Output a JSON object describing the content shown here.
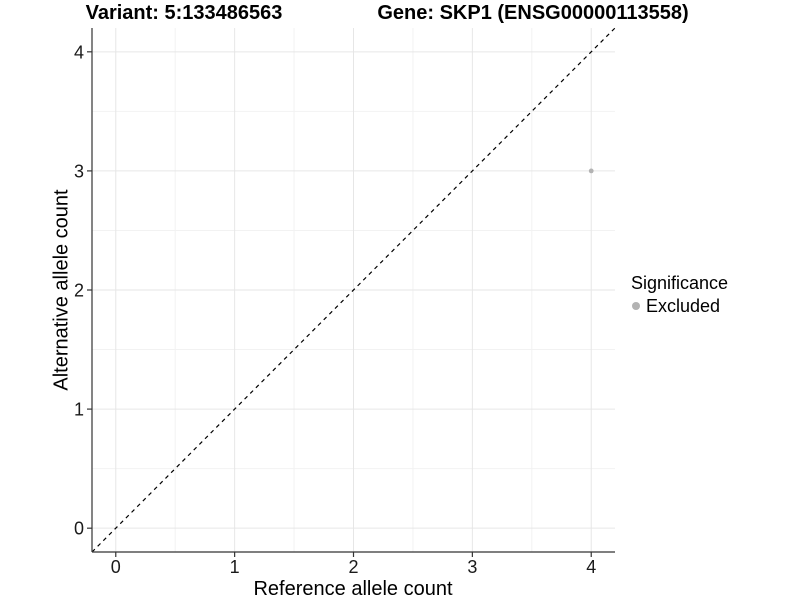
{
  "chart_data": {
    "type": "scatter",
    "titles": {
      "left": "Variant: 5:133486563",
      "right": "Gene: SKP1 (ENSG00000113558)"
    },
    "xlabel": "Reference allele count",
    "ylabel": "Alternative allele count",
    "xlim": [
      -0.2,
      4.2
    ],
    "ylim": [
      -0.2,
      4.2
    ],
    "xticks": [
      0,
      1,
      2,
      3,
      4
    ],
    "yticks": [
      0,
      1,
      2,
      3,
      4
    ],
    "grid": {
      "major": true,
      "minor": true,
      "major_color": "#e6e6e6",
      "minor_color": "#f2f2f2"
    },
    "identity_line": {
      "show": true,
      "style": "dashed",
      "color": "#000000",
      "slope": 1,
      "intercept": 0
    },
    "series": [
      {
        "name": "Excluded",
        "color": "#b3b3b3",
        "points": [
          {
            "x": 4,
            "y": 3
          }
        ]
      }
    ],
    "legend": {
      "title": "Significance",
      "position": "right",
      "items": [
        {
          "label": "Excluded",
          "color": "#b3b3b3"
        }
      ]
    },
    "style": {
      "axis_line_color": "#333333",
      "tick_color": "#333333",
      "tick_label_color": "#1a1a1a",
      "background": "#ffffff"
    }
  }
}
